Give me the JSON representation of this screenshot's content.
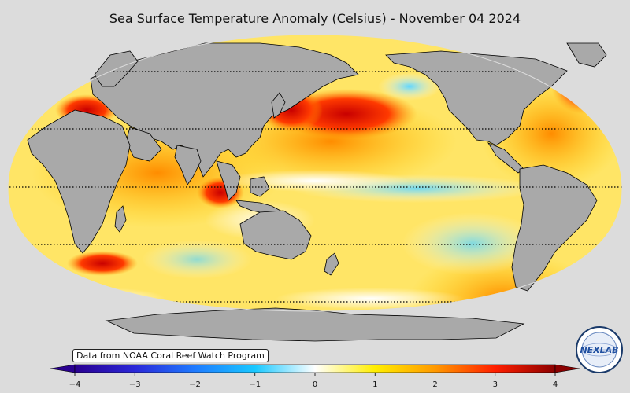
{
  "title": "Sea Surface Temperature Anomaly (Celsius) - November 04 2024",
  "credit": "Data from NOAA Coral Reef Watch Program",
  "colorbar": {
    "min": -4,
    "max": 4,
    "ticks": [
      "−4",
      "−3",
      "−2",
      "−1",
      "0",
      "1",
      "2",
      "3",
      "4"
    ],
    "colors": [
      "#2a0090",
      "#2b28d8",
      "#1f7bff",
      "#19c8ff",
      "#ffffff",
      "#ffee00",
      "#ff9900",
      "#ff1f00",
      "#8b0000"
    ]
  },
  "colors": {
    "land": "#a9a9a9",
    "background": "#dcdcdc",
    "coastline": "#000000"
  },
  "logo": {
    "text": "NEXLAB",
    "icon": "nexlab-globe-logo"
  }
}
